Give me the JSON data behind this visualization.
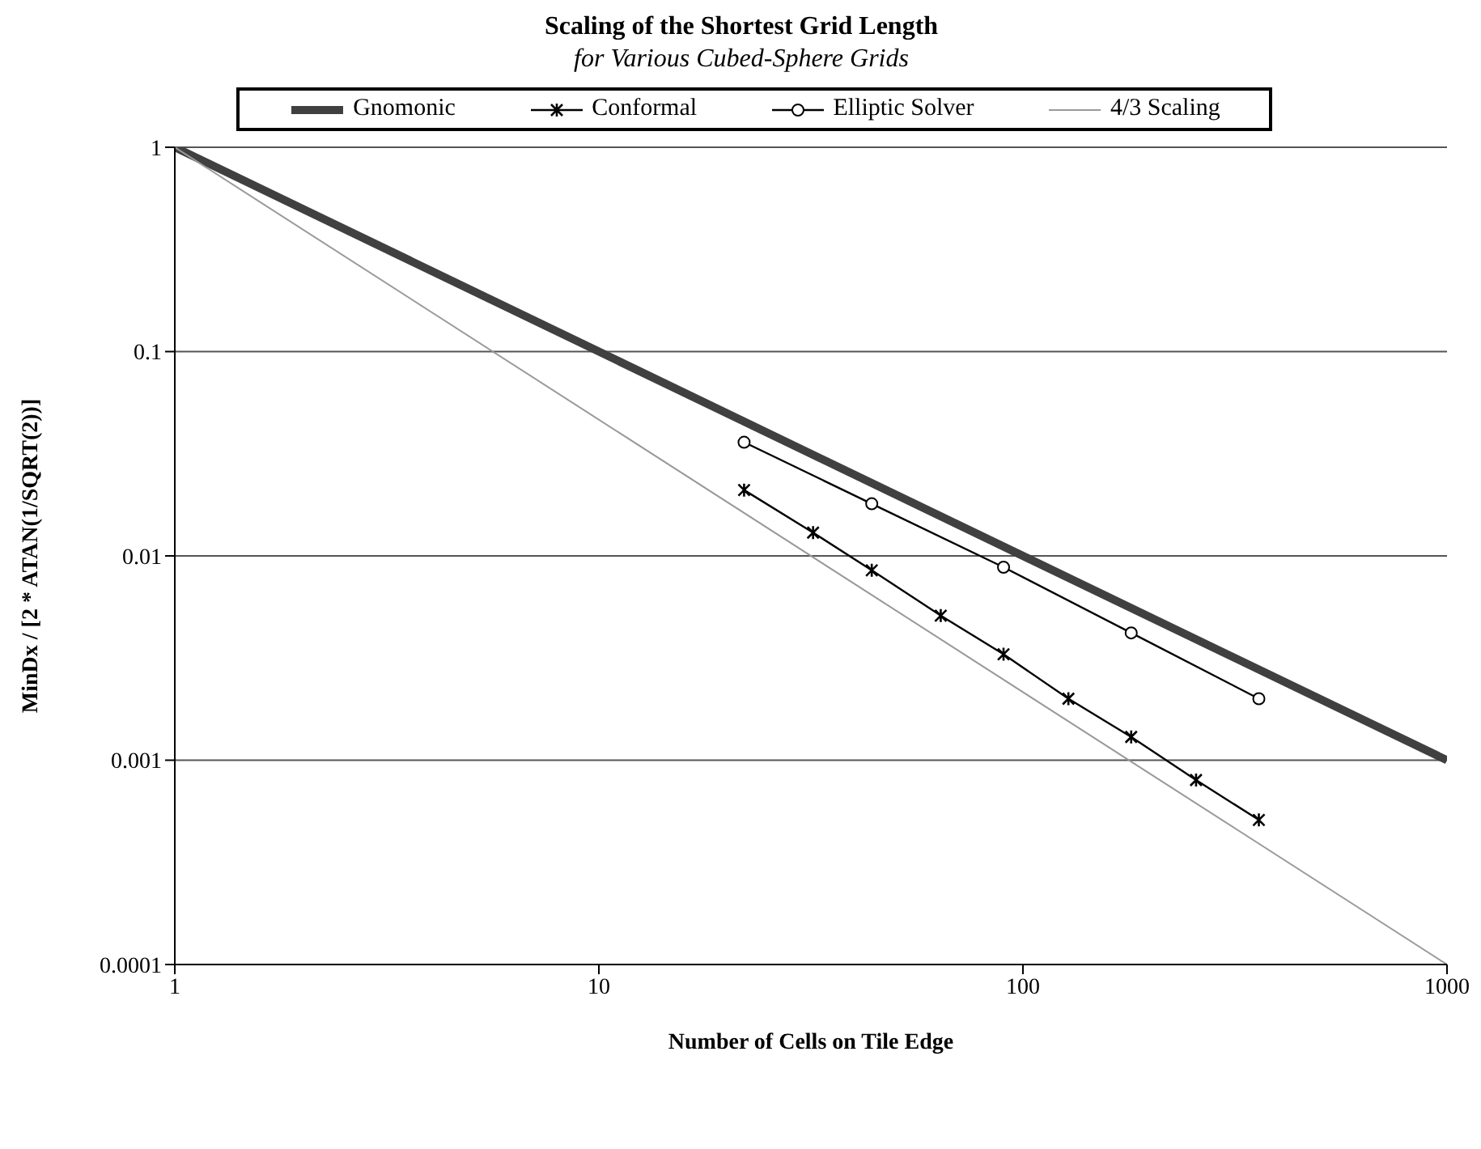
{
  "chart_data": {
    "type": "line",
    "title": "Scaling of the Shortest Grid Length",
    "subtitle": "for Various Cubed-Sphere Grids",
    "xlabel": "Number of Cells on Tile Edge",
    "ylabel": "MinDx / [2 * ATAN(1/SQRT(2))]",
    "log": "xy",
    "grid": "y",
    "legend": "top",
    "xlim": [
      1,
      1000
    ],
    "xticks": [
      1,
      10,
      100,
      1000
    ],
    "ylim": [
      0.0001,
      1
    ],
    "yticks": [
      0.0001,
      0.001,
      0.01,
      0.1,
      1
    ],
    "series": [
      {
        "name": "Gnomonic",
        "color": "#404040",
        "marker": "none",
        "x": [
          1,
          1000
        ],
        "values": [
          1,
          0.001
        ]
      },
      {
        "name": "Conformal",
        "color": "#000000",
        "marker": "cross",
        "x": [
          22,
          32,
          44,
          64,
          90,
          128,
          180,
          256,
          360
        ],
        "values": [
          0.021,
          0.013,
          0.0085,
          0.0051,
          0.0033,
          0.002,
          0.0013,
          0.0008,
          0.00051
        ]
      },
      {
        "name": "Elliptic Solver",
        "color": "#000000",
        "marker": "circle",
        "x": [
          22,
          44,
          90,
          180,
          360
        ],
        "values": [
          0.036,
          0.018,
          0.0088,
          0.0042,
          0.002
        ]
      },
      {
        "name": "4/3 Scaling",
        "color": "#999999",
        "marker": "none",
        "x": [
          1,
          1000
        ],
        "values": [
          1,
          0.0001
        ]
      }
    ]
  }
}
